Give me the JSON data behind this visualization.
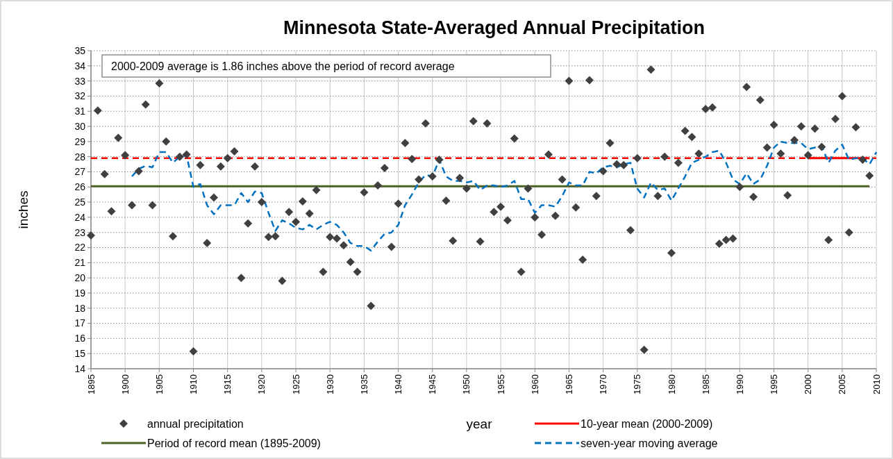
{
  "chart_data": {
    "type": "scatter",
    "title": "Minnesota State-Averaged Annual Precipitation",
    "xlabel": "year",
    "ylabel": "inches",
    "annotations": [
      "2000-2009 average is 1.86 inches above the period of record average"
    ],
    "xlim": [
      1895,
      2010
    ],
    "xticks": [
      1895,
      1900,
      1905,
      1910,
      1915,
      1920,
      1925,
      1930,
      1935,
      1940,
      1945,
      1950,
      1955,
      1960,
      1965,
      1970,
      1975,
      1980,
      1985,
      1990,
      1995,
      2000,
      2005,
      2010
    ],
    "ylim": [
      14,
      35
    ],
    "yticks": [
      14,
      15,
      16,
      17,
      18,
      19,
      20,
      21,
      22,
      23,
      24,
      25,
      26,
      27,
      28,
      29,
      30,
      31,
      32,
      33,
      34,
      35
    ],
    "grid": true,
    "legend": "bottom",
    "ref_lines": [
      {
        "axis": "y",
        "value": 27.91,
        "color": "#ff0000",
        "line_style": "dashed"
      }
    ],
    "series": [
      {
        "name": "annual precipitation",
        "color": "#404040",
        "marker": "diamond",
        "x": [
          1895,
          1896,
          1897,
          1898,
          1899,
          1900,
          1901,
          1902,
          1903,
          1904,
          1905,
          1906,
          1907,
          1908,
          1909,
          1910,
          1911,
          1912,
          1913,
          1914,
          1915,
          1916,
          1917,
          1918,
          1919,
          1920,
          1921,
          1922,
          1923,
          1924,
          1925,
          1926,
          1927,
          1928,
          1929,
          1930,
          1931,
          1932,
          1933,
          1934,
          1935,
          1936,
          1937,
          1938,
          1939,
          1940,
          1941,
          1942,
          1943,
          1944,
          1945,
          1946,
          1947,
          1948,
          1949,
          1950,
          1951,
          1952,
          1953,
          1954,
          1955,
          1956,
          1957,
          1958,
          1959,
          1960,
          1961,
          1962,
          1963,
          1964,
          1965,
          1966,
          1967,
          1968,
          1969,
          1970,
          1971,
          1972,
          1973,
          1974,
          1975,
          1976,
          1977,
          1978,
          1979,
          1980,
          1981,
          1982,
          1983,
          1984,
          1985,
          1986,
          1987,
          1988,
          1989,
          1990,
          1991,
          1992,
          1993,
          1994,
          1995,
          1996,
          1997,
          1998,
          1999,
          2000,
          2001,
          2002,
          2003,
          2004,
          2005,
          2006,
          2007,
          2008,
          2009
        ],
        "values": [
          22.8,
          31.05,
          26.85,
          24.4,
          29.25,
          28.1,
          24.8,
          27.05,
          31.45,
          24.8,
          32.85,
          29.0,
          22.75,
          28.0,
          28.15,
          15.15,
          27.45,
          22.3,
          25.3,
          27.35,
          27.9,
          28.35,
          20.0,
          23.6,
          27.35,
          25.0,
          22.7,
          22.75,
          19.8,
          24.35,
          23.7,
          25.05,
          24.25,
          25.8,
          20.4,
          22.7,
          22.6,
          22.15,
          21.05,
          20.4,
          25.65,
          18.15,
          26.1,
          27.25,
          22.05,
          24.9,
          28.9,
          27.85,
          26.5,
          30.2,
          26.7,
          27.8,
          25.1,
          22.45,
          26.6,
          25.9,
          30.35,
          22.4,
          30.2,
          24.35,
          24.7,
          23.8,
          29.2,
          20.4,
          25.9,
          24.0,
          22.85,
          28.15,
          24.1,
          26.5,
          33.0,
          24.65,
          21.2,
          33.05,
          25.4,
          27.05,
          28.9,
          27.5,
          27.45,
          23.15,
          27.9,
          15.25,
          33.75,
          25.4,
          28.0,
          21.65,
          27.6,
          29.7,
          29.3,
          28.2,
          31.15,
          31.25,
          22.25,
          22.5,
          22.6,
          26.0,
          32.6,
          25.35,
          31.75,
          28.6,
          30.1,
          28.2,
          25.45,
          29.1,
          30.0,
          28.1,
          29.85,
          28.65,
          22.5,
          30.5,
          32.0,
          23.0,
          29.95,
          27.8,
          26.75
        ]
      },
      {
        "name": "10-year mean (2000-2009)",
        "type": "line",
        "color": "#ff0000",
        "line_style": "solid",
        "x": [
          2000,
          2009
        ],
        "values": [
          27.91,
          27.91
        ]
      },
      {
        "name": "Period of record mean (1895-2009)",
        "type": "line",
        "color": "#4f6228",
        "line_style": "solid",
        "x": [
          1895,
          2009
        ],
        "values": [
          26.05,
          26.05
        ]
      },
      {
        "name": "seven-year moving average",
        "type": "line",
        "color": "#0070c0",
        "line_style": "dashed",
        "x": [
          1901,
          1902,
          1903,
          1904,
          1905,
          1906,
          1907,
          1908,
          1909,
          1910,
          1911,
          1912,
          1913,
          1914,
          1915,
          1916,
          1917,
          1918,
          1919,
          1920,
          1921,
          1922,
          1923,
          1924,
          1925,
          1926,
          1927,
          1928,
          1929,
          1930,
          1931,
          1932,
          1933,
          1934,
          1935,
          1936,
          1937,
          1938,
          1939,
          1940,
          1941,
          1942,
          1943,
          1944,
          1945,
          1946,
          1947,
          1948,
          1949,
          1950,
          1951,
          1952,
          1953,
          1954,
          1955,
          1956,
          1957,
          1958,
          1959,
          1960,
          1961,
          1962,
          1963,
          1964,
          1965,
          1966,
          1967,
          1968,
          1969,
          1970,
          1971,
          1972,
          1973,
          1974,
          1975,
          1976,
          1977,
          1978,
          1979,
          1980,
          1981,
          1982,
          1983,
          1984,
          1985,
          1986,
          1987,
          1988,
          1989,
          1990,
          1991,
          1992,
          1993,
          1994,
          1995,
          1996,
          1997,
          1998,
          1999,
          2000,
          2001,
          2002,
          2003,
          2004,
          2005,
          2006,
          2007,
          2008,
          2009,
          2010
        ],
        "values": [
          26.7,
          27.2,
          27.4,
          27.3,
          28.3,
          28.3,
          27.6,
          28.0,
          28.1,
          26.0,
          26.2,
          24.8,
          24.2,
          24.8,
          24.8,
          24.8,
          25.6,
          25.0,
          25.7,
          25.6,
          24.3,
          23.1,
          23.8,
          23.6,
          23.3,
          23.2,
          23.5,
          23.2,
          23.5,
          23.7,
          23.5,
          23.0,
          22.3,
          22.1,
          22.1,
          21.8,
          22.4,
          22.9,
          23.0,
          23.5,
          24.8,
          25.5,
          26.3,
          26.8,
          26.7,
          27.8,
          26.7,
          26.4,
          26.4,
          26.3,
          26.4,
          25.8,
          26.1,
          26.1,
          26.0,
          26.1,
          26.4,
          25.2,
          25.2,
          24.3,
          24.8,
          24.8,
          24.7,
          25.4,
          26.3,
          26.1,
          26.1,
          27.0,
          26.9,
          27.3,
          27.4,
          27.3,
          27.5,
          27.6,
          25.9,
          25.3,
          26.3,
          25.8,
          25.9,
          25.1,
          25.9,
          26.7,
          27.6,
          27.8,
          28.0,
          28.3,
          28.4,
          27.6,
          26.5,
          26.2,
          26.9,
          26.2,
          26.5,
          27.4,
          28.6,
          29.0,
          28.9,
          28.9,
          28.9,
          28.5,
          28.6,
          28.7,
          27.6,
          28.4,
          28.8,
          27.8,
          27.9,
          27.9,
          27.5,
          28.3
        ]
      }
    ]
  }
}
